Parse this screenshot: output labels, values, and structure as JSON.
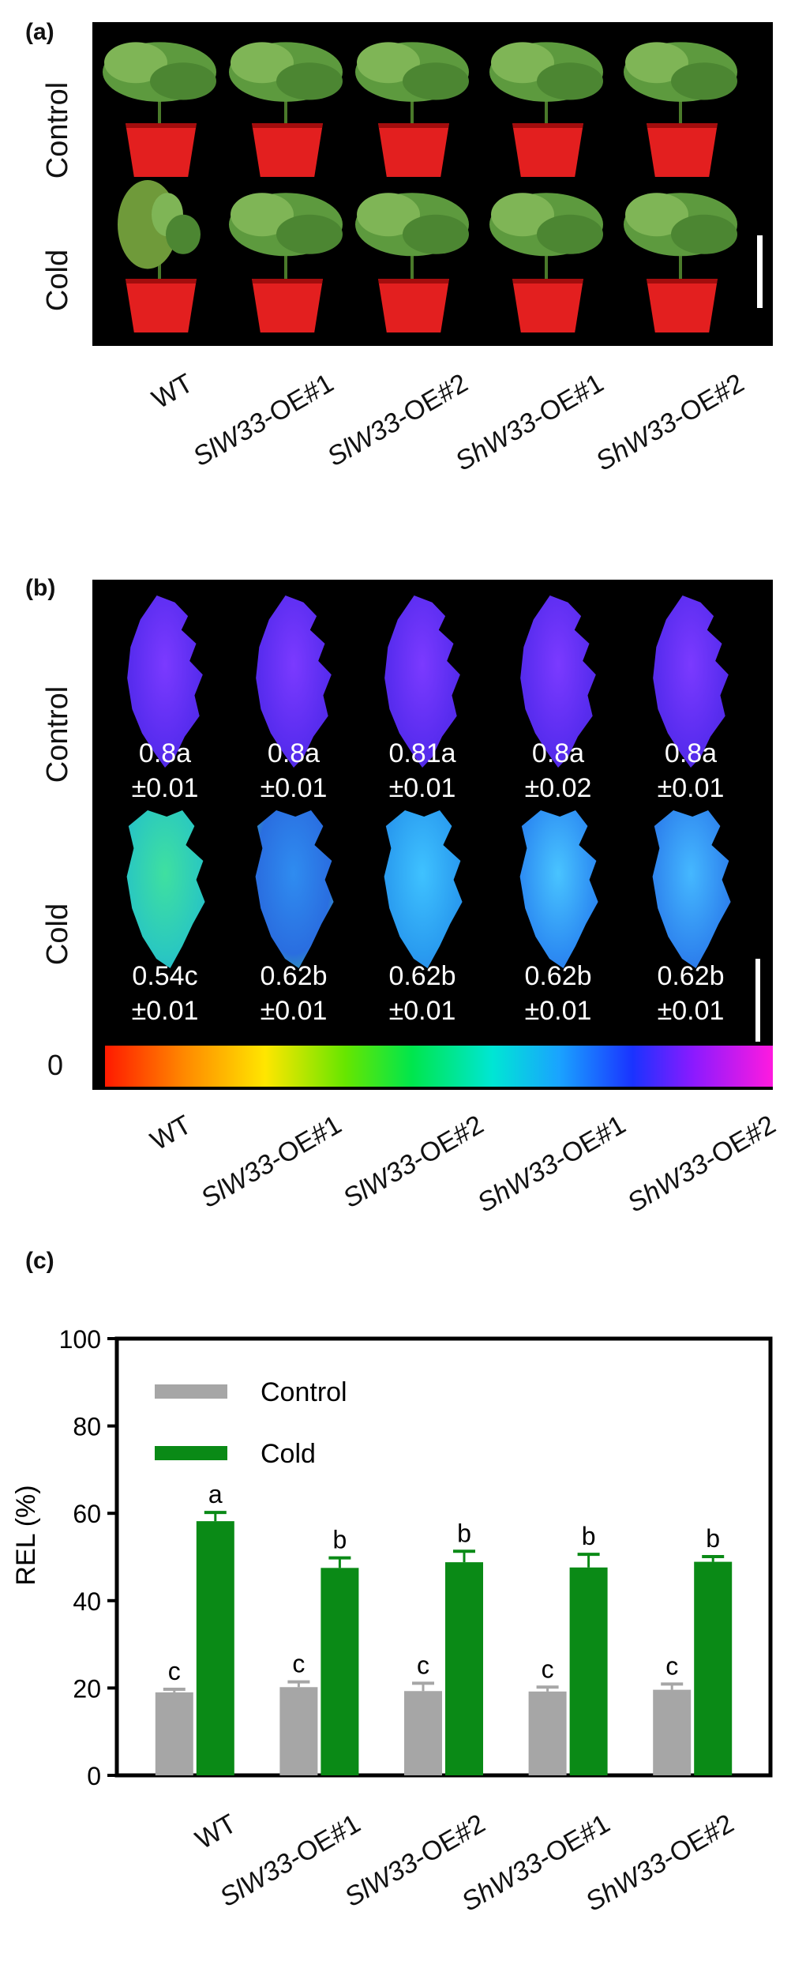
{
  "panels": {
    "a": {
      "label": "(a)",
      "row_labels": [
        "Control",
        "Cold"
      ],
      "genotypes": [
        {
          "pre": "",
          "it": "",
          "post": "WT"
        },
        {
          "pre": "",
          "it": "SlW33",
          "post": "-OE#1"
        },
        {
          "pre": "",
          "it": "SlW33",
          "post": "-OE#2"
        },
        {
          "pre": "",
          "it": "ShW33",
          "post": "-OE#1"
        },
        {
          "pre": "",
          "it": "ShW33",
          "post": "-OE#2"
        }
      ]
    },
    "b": {
      "label": "(b)",
      "row_labels": [
        "Control",
        "Cold"
      ],
      "scale_zero": "0",
      "control_values": [
        {
          "mean": "0.8a",
          "sd": "±0.01"
        },
        {
          "mean": "0.8a",
          "sd": "±0.01"
        },
        {
          "mean": "0.81a",
          "sd": "±0.01"
        },
        {
          "mean": "0.8a",
          "sd": "±0.02"
        },
        {
          "mean": "0.8a",
          "sd": "±0.01"
        }
      ],
      "cold_values": [
        {
          "mean": "0.54c",
          "sd": "±0.01"
        },
        {
          "mean": "0.62b",
          "sd": "±0.01"
        },
        {
          "mean": "0.62b",
          "sd": "±0.01"
        },
        {
          "mean": "0.62b",
          "sd": "±0.01"
        },
        {
          "mean": "0.62b",
          "sd": "±0.01"
        }
      ],
      "genotypes": [
        {
          "it": "",
          "post": "WT"
        },
        {
          "it": "SlW33",
          "post": "-OE#1"
        },
        {
          "it": "SlW33",
          "post": "-OE#2"
        },
        {
          "it": "ShW33",
          "post": "-OE#1"
        },
        {
          "it": "ShW33",
          "post": "-OE#2"
        }
      ]
    },
    "c": {
      "label": "(c)"
    }
  },
  "chart_data": {
    "type": "bar",
    "ylabel": "REL (%)",
    "ylim": [
      0,
      100
    ],
    "yticks": [
      0,
      20,
      40,
      60,
      80,
      100
    ],
    "categories": [
      {
        "it": "",
        "post": "WT"
      },
      {
        "it": "SlW33",
        "post": "-OE#1"
      },
      {
        "it": "SlW33",
        "post": "-OE#2"
      },
      {
        "it": "ShW33",
        "post": "-OE#1"
      },
      {
        "it": "ShW33",
        "post": "-OE#2"
      }
    ],
    "series": [
      {
        "name": "Control",
        "color": "#a6a6a6",
        "values": [
          19,
          20.2,
          19.3,
          19.2,
          19.6
        ],
        "errors": [
          0.7,
          1.2,
          1.8,
          1.0,
          1.3
        ],
        "letters": [
          "c",
          "c",
          "c",
          "c",
          "c"
        ]
      },
      {
        "name": "Cold",
        "color": "#0a8a16",
        "values": [
          58.2,
          47.5,
          48.8,
          47.6,
          48.9
        ],
        "errors": [
          2.0,
          2.3,
          2.5,
          3.0,
          1.2
        ],
        "letters": [
          "a",
          "b",
          "b",
          "b",
          "b"
        ]
      }
    ],
    "legend_position": "top-left",
    "grid": false
  }
}
